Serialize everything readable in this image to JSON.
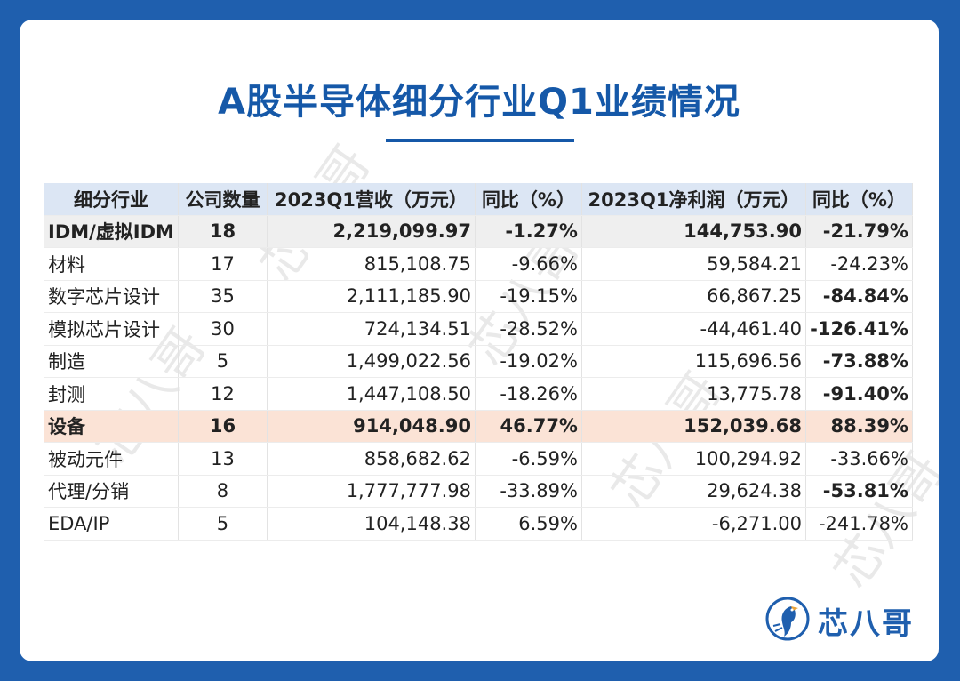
{
  "title": "A股半导体细分行业Q1业绩情况",
  "table": {
    "headers": [
      "细分行业",
      "公司数量",
      "2023Q1营收（万元）",
      "同比（%）",
      "2023Q1净利润（万元）",
      "同比（%）"
    ],
    "rows": [
      [
        "IDM/虚拟IDM",
        "18",
        "2,219,099.97",
        "-1.27%",
        "144,753.90",
        "-21.79%"
      ],
      [
        "材料",
        "17",
        "815,108.75",
        "-9.66%",
        "59,584.21",
        "-24.23%"
      ],
      [
        "数字芯片设计",
        "35",
        "2,111,185.90",
        "-19.15%",
        "66,867.25",
        "-84.84%"
      ],
      [
        "模拟芯片设计",
        "30",
        "724,134.51",
        "-28.52%",
        "-44,461.40",
        "-126.41%"
      ],
      [
        "制造",
        "5",
        "1,499,022.56",
        "-19.02%",
        "115,696.56",
        "-73.88%"
      ],
      [
        "封测",
        "12",
        "1,447,108.50",
        "-18.26%",
        "13,775.78",
        "-91.40%"
      ],
      [
        "设备",
        "16",
        "914,048.90",
        "46.77%",
        "152,039.68",
        "88.39%"
      ],
      [
        "被动元件",
        "13",
        "858,682.62",
        "-6.59%",
        "100,294.92",
        "-33.66%"
      ],
      [
        "代理/分销",
        "8",
        "1,777,777.98",
        "-33.89%",
        "29,624.38",
        "-53.81%"
      ],
      [
        "EDA/IP",
        "5",
        "104,148.38",
        "6.59%",
        "-6,271.00",
        "-241.78%"
      ]
    ]
  },
  "brand": {
    "name": "芯八哥",
    "watermark": "芯八哥",
    "icon": "bird-logo-icon",
    "color": "#1f5fae"
  },
  "colors": {
    "accent": "#1558a8",
    "header_bg": "#dce6f4",
    "highlight_equipment": "#fbe3d6",
    "highlight_idm": "#efefef"
  }
}
